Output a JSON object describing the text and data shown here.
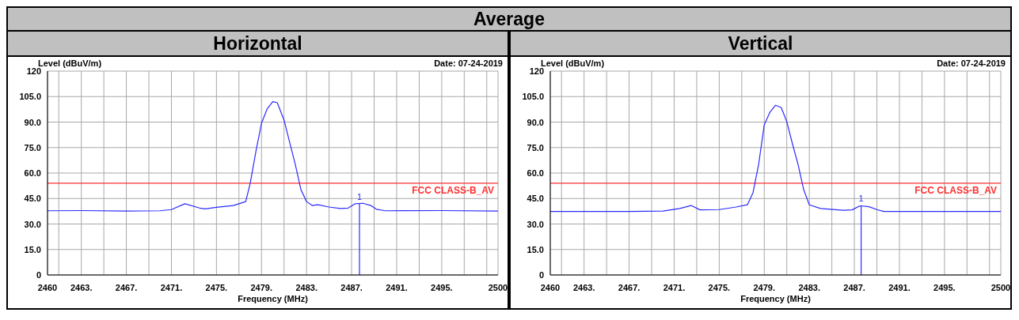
{
  "chart_data": [
    {
      "type": "line",
      "title": "Horizontal",
      "xlabel": "Frequency (MHz)",
      "ylabel": "Level (dBuV/m)",
      "annotations": [
        "Average",
        "Date: 07-24-2019",
        {
          "text": "1",
          "x": 2487.7,
          "y": 41.9
        }
      ],
      "x": [
        2460,
        2463,
        2467,
        2470,
        2471,
        2472.2,
        2473.5,
        2474,
        2475,
        2476.5,
        2477.6,
        2478,
        2478.5,
        2479,
        2479.5,
        2480,
        2480.4,
        2481,
        2481.5,
        2482,
        2482.5,
        2483,
        2483.5,
        2484,
        2485,
        2486,
        2486.7,
        2487.3,
        2488,
        2488.7,
        2489.2,
        2490,
        2495,
        2500
      ],
      "series": [
        {
          "color": "#2b2bff",
          "values": [
            37.8,
            37.9,
            37.6,
            37.8,
            38.5,
            41.9,
            39.4,
            38.9,
            39.8,
            40.9,
            43.2,
            54,
            72.6,
            89.3,
            97.7,
            102,
            101.4,
            91.2,
            78.1,
            65.1,
            50.2,
            43.2,
            40.9,
            41.3,
            40,
            39.1,
            39.4,
            41.9,
            42.2,
            40.9,
            38.7,
            37.8,
            37.9,
            37.6
          ]
        }
      ],
      "xlim": [
        2460,
        2500
      ],
      "xticks": [
        {
          "value": 2460,
          "label": "2460"
        },
        {
          "value": 2461,
          "label": null
        },
        {
          "value": 2463,
          "label": "2463."
        },
        {
          "value": 2465,
          "label": null
        },
        {
          "value": 2467,
          "label": "2467."
        },
        {
          "value": 2469,
          "label": null
        },
        {
          "value": 2471,
          "label": "2471."
        },
        {
          "value": 2473,
          "label": null
        },
        {
          "value": 2475,
          "label": "2475."
        },
        {
          "value": 2477,
          "label": null
        },
        {
          "value": 2479,
          "label": "2479."
        },
        {
          "value": 2481,
          "label": null
        },
        {
          "value": 2483,
          "label": "2483."
        },
        {
          "value": 2485,
          "label": null
        },
        {
          "value": 2487,
          "label": "2487."
        },
        {
          "value": 2489,
          "label": null
        },
        {
          "value": 2491,
          "label": "2491."
        },
        {
          "value": 2493,
          "label": null
        },
        {
          "value": 2495,
          "label": "2495."
        },
        {
          "value": 2497,
          "label": null
        },
        {
          "value": 2499,
          "label": null
        },
        {
          "value": 2500,
          "label": "2500"
        }
      ],
      "ylim": [
        0,
        120
      ],
      "yticks": [
        {
          "value": 0,
          "label": "0"
        },
        {
          "value": 15,
          "label": "15.0"
        },
        {
          "value": 30,
          "label": "30.0"
        },
        {
          "value": 45,
          "label": "45.0"
        },
        {
          "value": 60,
          "label": "60.0"
        },
        {
          "value": 75,
          "label": "75.0"
        },
        {
          "value": 90,
          "label": "90.0"
        },
        {
          "value": 105,
          "label": "105.0"
        },
        {
          "value": 120,
          "label": "120"
        }
      ],
      "ref_lines": [
        {
          "axis": "y",
          "value": 54,
          "label": "FCC CLASS-B_AV",
          "color": "#ff3030"
        }
      ],
      "grid": true,
      "marker": "none",
      "line_style": "solid"
    },
    {
      "type": "line",
      "title": "Vertical",
      "xlabel": "Frequency (MHz)",
      "ylabel": "Level (dBuV/m)",
      "annotations": [
        "Date: 07-24-2019",
        {
          "text": "1",
          "x": 2487.6,
          "y": 40.7
        }
      ],
      "x": [
        2460,
        2467,
        2470,
        2471.5,
        2472.5,
        2473.3,
        2475,
        2476.5,
        2477.5,
        2478,
        2478.5,
        2479,
        2479.5,
        2480,
        2480.5,
        2481,
        2481.5,
        2482,
        2482.5,
        2483,
        2484,
        2486,
        2486.8,
        2487.5,
        2488.3,
        2489,
        2489.6,
        2495,
        2500
      ],
      "series": [
        {
          "color": "#2b2bff",
          "values": [
            37.4,
            37.4,
            37.6,
            39.1,
            40.9,
            38.3,
            38.5,
            40,
            41.3,
            48.4,
            65.1,
            88.4,
            95.8,
            99.9,
            98.6,
            90.2,
            77.2,
            65.1,
            50.2,
            41.3,
            39.1,
            38.1,
            38.3,
            40.7,
            40.2,
            38.5,
            37.4,
            37.4,
            37.4
          ]
        }
      ],
      "xlim": [
        2460,
        2500
      ],
      "xticks": [
        {
          "value": 2460,
          "label": "2460"
        },
        {
          "value": 2461,
          "label": null
        },
        {
          "value": 2463,
          "label": "2463."
        },
        {
          "value": 2465,
          "label": null
        },
        {
          "value": 2467,
          "label": "2467."
        },
        {
          "value": 2469,
          "label": null
        },
        {
          "value": 2471,
          "label": "2471."
        },
        {
          "value": 2473,
          "label": null
        },
        {
          "value": 2475,
          "label": "2475."
        },
        {
          "value": 2477,
          "label": null
        },
        {
          "value": 2479,
          "label": "2479."
        },
        {
          "value": 2481,
          "label": null
        },
        {
          "value": 2483,
          "label": "2483."
        },
        {
          "value": 2485,
          "label": null
        },
        {
          "value": 2487,
          "label": "2487."
        },
        {
          "value": 2489,
          "label": null
        },
        {
          "value": 2491,
          "label": "2491."
        },
        {
          "value": 2493,
          "label": null
        },
        {
          "value": 2495,
          "label": "2495."
        },
        {
          "value": 2497,
          "label": null
        },
        {
          "value": 2499,
          "label": null
        },
        {
          "value": 2500,
          "label": "2500"
        }
      ],
      "ylim": [
        0,
        120
      ],
      "yticks": [
        {
          "value": 0,
          "label": "0"
        },
        {
          "value": 15,
          "label": "15.0"
        },
        {
          "value": 30,
          "label": "30.0"
        },
        {
          "value": 45,
          "label": "45.0"
        },
        {
          "value": 60,
          "label": "60.0"
        },
        {
          "value": 75,
          "label": "75.0"
        },
        {
          "value": 90,
          "label": "90.0"
        },
        {
          "value": 105,
          "label": "105.0"
        },
        {
          "value": 120,
          "label": "120"
        }
      ],
      "ref_lines": [
        {
          "axis": "y",
          "value": 54,
          "label": "FCC CLASS-B_AV",
          "color": "#ff3030"
        }
      ],
      "grid": true,
      "marker": "none",
      "line_style": "solid"
    }
  ]
}
